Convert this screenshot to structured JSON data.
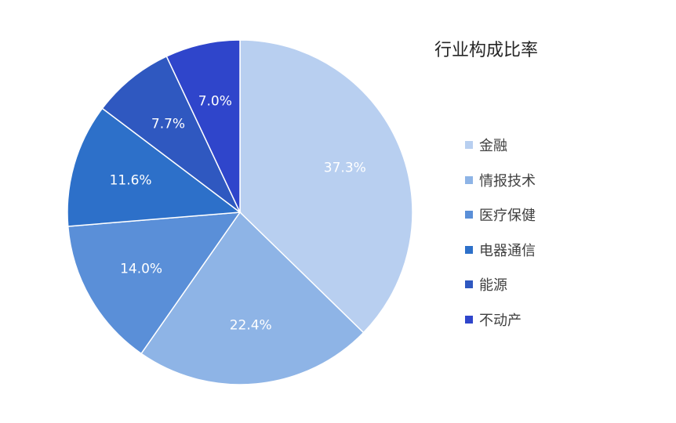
{
  "chart_data": {
    "type": "pie",
    "title": "行业构成比率",
    "legend_position": "right",
    "categories": [
      "金融",
      "情报技术",
      "医疗保健",
      "电器通信",
      "能源",
      "不动产"
    ],
    "values": [
      37.3,
      22.4,
      14.0,
      11.6,
      7.7,
      7.0
    ],
    "data_labels": [
      "37.3%",
      "22.4%",
      "14.0%",
      "11.6%",
      "7.7%",
      "7.0%"
    ],
    "colors": [
      "#b8cff0",
      "#8eb4e6",
      "#5a8fd8",
      "#2d70c9",
      "#2f58c0",
      "#2f45cb"
    ],
    "start_angle": "12 o'clock",
    "direction": "clockwise"
  }
}
